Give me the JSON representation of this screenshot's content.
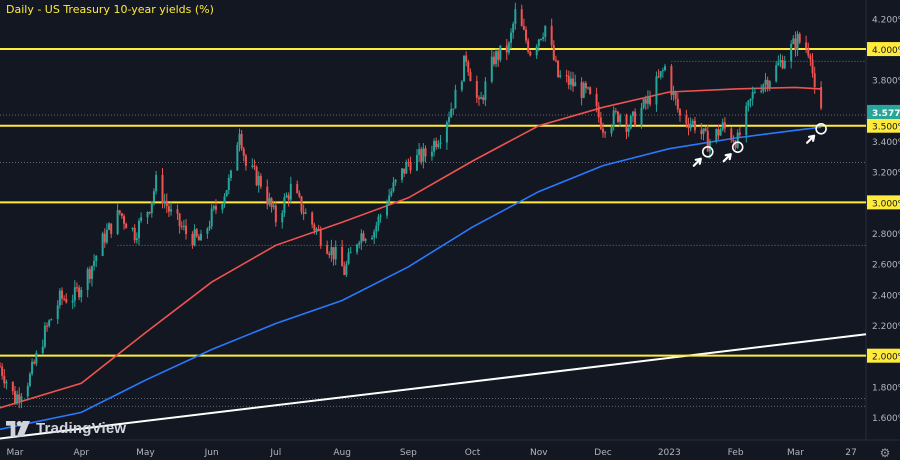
{
  "colors": {
    "background": "#131722",
    "up": "#26a69a",
    "down": "#ef5350",
    "ma_slow": "#2979ff",
    "ma_fast": "#ef5350",
    "horizontal_level": "#ffeb3b",
    "trendline": "#ffffff",
    "axis_text": "#b2b5be"
  },
  "header": {
    "title": "Daily - US Treasury 10-year yields (%)"
  },
  "branding": {
    "logo_text": "TradingView",
    "settings_icon": "gear-icon"
  },
  "chart_data": {
    "type": "line",
    "title": "Daily - US Treasury 10-year yields (%)",
    "xlabel": "",
    "ylabel": "",
    "ylim": [
      1.45,
      4.32
    ],
    "y_ticks": [
      "1.600%",
      "1.800%",
      "2.000%",
      "2.200%",
      "2.400%",
      "2.600%",
      "2.800%",
      "3.000%",
      "3.200%",
      "3.400%",
      "3.600%",
      "3.800%",
      "4.000%",
      "4.200%"
    ],
    "y_tick_values": [
      1.6,
      1.8,
      2.0,
      2.2,
      2.4,
      2.6,
      2.8,
      3.0,
      3.2,
      3.4,
      3.6,
      3.8,
      4.0,
      4.2
    ],
    "x_ticks": [
      {
        "label": "Mar",
        "value": "2022-03-01"
      },
      {
        "label": "Apr",
        "value": "2022-04-01"
      },
      {
        "label": "May",
        "value": "2022-05-01"
      },
      {
        "label": "Jun",
        "value": "2022-06-01"
      },
      {
        "label": "Jul",
        "value": "2022-07-01"
      },
      {
        "label": "Aug",
        "value": "2022-08-01"
      },
      {
        "label": "Sep",
        "value": "2022-09-01"
      },
      {
        "label": "Oct",
        "value": "2022-10-01"
      },
      {
        "label": "Nov",
        "value": "2022-11-01"
      },
      {
        "label": "Dec",
        "value": "2022-12-01"
      },
      {
        "label": "2023",
        "value": "2023-01-01"
      },
      {
        "label": "Feb",
        "value": "2023-02-01"
      },
      {
        "label": "Mar",
        "value": "2023-03-01"
      },
      {
        "label": "27",
        "value": "2023-03-27"
      }
    ],
    "xlim": [
      "2022-02-22",
      "2023-04-03"
    ],
    "current_price": {
      "label": "3.577%",
      "value": 3.577
    },
    "key_levels": [
      {
        "label": "4.000%",
        "value": 4.0
      },
      {
        "label": "3.500%",
        "value": 3.5
      },
      {
        "label": "3.000%",
        "value": 3.0
      },
      {
        "label": "2.000%",
        "value": 2.0
      }
    ],
    "minor_levels": [
      {
        "value": 3.92,
        "from": "2023-01-02",
        "to": "2023-04-03"
      },
      {
        "value": 3.57,
        "from": "2022-02-22",
        "to": "2023-04-03"
      },
      {
        "value": 3.26,
        "from": "2022-02-22",
        "to": "2023-04-03"
      },
      {
        "value": 2.72,
        "from": "2022-04-18",
        "to": "2023-04-03"
      },
      {
        "value": 1.72,
        "from": "2022-02-22",
        "to": "2023-04-03"
      },
      {
        "value": 1.67,
        "from": "2022-02-22",
        "to": "2023-04-03"
      }
    ],
    "price_path": [
      [
        "2022-02-22",
        1.93
      ],
      [
        "2022-03-01",
        1.72
      ],
      [
        "2022-03-08",
        1.86
      ],
      [
        "2022-03-15",
        2.15
      ],
      [
        "2022-03-22",
        2.37
      ],
      [
        "2022-03-29",
        2.39
      ],
      [
        "2022-04-05",
        2.56
      ],
      [
        "2022-04-12",
        2.78
      ],
      [
        "2022-04-19",
        2.93
      ],
      [
        "2022-04-26",
        2.8
      ],
      [
        "2022-05-03",
        2.98
      ],
      [
        "2022-05-06",
        3.13
      ],
      [
        "2022-05-13",
        2.92
      ],
      [
        "2022-05-20",
        2.8
      ],
      [
        "2022-05-27",
        2.74
      ],
      [
        "2022-06-01",
        2.91
      ],
      [
        "2022-06-06",
        3.04
      ],
      [
        "2022-06-10",
        3.16
      ],
      [
        "2022-06-14",
        3.49
      ],
      [
        "2022-06-17",
        3.24
      ],
      [
        "2022-06-24",
        3.13
      ],
      [
        "2022-07-01",
        2.89
      ],
      [
        "2022-07-08",
        3.09
      ],
      [
        "2022-07-15",
        2.92
      ],
      [
        "2022-07-22",
        2.78
      ],
      [
        "2022-07-29",
        2.65
      ],
      [
        "2022-08-02",
        2.55
      ],
      [
        "2022-08-09",
        2.79
      ],
      [
        "2022-08-16",
        2.82
      ],
      [
        "2022-08-23",
        3.05
      ],
      [
        "2022-09-01",
        3.26
      ],
      [
        "2022-09-09",
        3.31
      ],
      [
        "2022-09-16",
        3.45
      ],
      [
        "2022-09-23",
        3.69
      ],
      [
        "2022-09-28",
        3.95
      ],
      [
        "2022-10-04",
        3.62
      ],
      [
        "2022-10-11",
        3.94
      ],
      [
        "2022-10-18",
        4.01
      ],
      [
        "2022-10-21",
        4.23
      ],
      [
        "2022-10-28",
        3.99
      ],
      [
        "2022-11-04",
        4.15
      ],
      [
        "2022-11-10",
        3.82
      ],
      [
        "2022-11-17",
        3.77
      ],
      [
        "2022-11-24",
        3.7
      ],
      [
        "2022-12-01",
        3.5
      ],
      [
        "2022-12-09",
        3.58
      ],
      [
        "2022-12-13",
        3.5
      ],
      [
        "2022-12-22",
        3.66
      ],
      [
        "2022-12-30",
        3.88
      ],
      [
        "2023-01-06",
        3.56
      ],
      [
        "2023-01-13",
        3.51
      ],
      [
        "2023-01-19",
        3.39
      ],
      [
        "2023-01-26",
        3.49
      ],
      [
        "2023-02-02",
        3.4
      ],
      [
        "2023-02-10",
        3.74
      ],
      [
        "2023-02-17",
        3.82
      ],
      [
        "2023-02-24",
        3.95
      ],
      [
        "2023-03-02",
        4.06
      ],
      [
        "2023-03-08",
        3.99
      ],
      [
        "2023-03-10",
        3.7
      ],
      [
        "2023-03-13",
        3.577
      ]
    ],
    "series": [
      {
        "values": [
          [
            "2022-02-22",
            1.66
          ],
          [
            "2022-04-01",
            1.82
          ],
          [
            "2022-05-01",
            2.15
          ],
          [
            "2022-06-01",
            2.48
          ],
          [
            "2022-07-01",
            2.72
          ],
          [
            "2022-08-01",
            2.87
          ],
          [
            "2022-09-01",
            3.03
          ],
          [
            "2022-10-01",
            3.27
          ],
          [
            "2022-11-01",
            3.5
          ],
          [
            "2022-12-01",
            3.62
          ],
          [
            "2023-01-01",
            3.72
          ],
          [
            "2023-02-01",
            3.74
          ],
          [
            "2023-03-01",
            3.75
          ],
          [
            "2023-03-13",
            3.74
          ]
        ]
      },
      {
        "values": [
          [
            "2022-02-22",
            1.52
          ],
          [
            "2022-04-01",
            1.63
          ],
          [
            "2022-05-01",
            1.84
          ],
          [
            "2022-06-01",
            2.04
          ],
          [
            "2022-07-01",
            2.21
          ],
          [
            "2022-08-01",
            2.36
          ],
          [
            "2022-09-01",
            2.58
          ],
          [
            "2022-10-01",
            2.84
          ],
          [
            "2022-11-01",
            3.07
          ],
          [
            "2022-12-01",
            3.24
          ],
          [
            "2023-01-01",
            3.35
          ],
          [
            "2023-02-01",
            3.42
          ],
          [
            "2023-03-01",
            3.47
          ],
          [
            "2023-03-13",
            3.49
          ]
        ]
      }
    ],
    "trendline": {
      "from": [
        "2022-02-22",
        1.46
      ],
      "to": [
        "2023-04-03",
        2.14
      ]
    },
    "touch_points": [
      {
        "x": "2023-01-19",
        "y": 3.33
      },
      {
        "x": "2023-02-02",
        "y": 3.36
      },
      {
        "x": "2023-03-13",
        "y": 3.48
      }
    ]
  }
}
